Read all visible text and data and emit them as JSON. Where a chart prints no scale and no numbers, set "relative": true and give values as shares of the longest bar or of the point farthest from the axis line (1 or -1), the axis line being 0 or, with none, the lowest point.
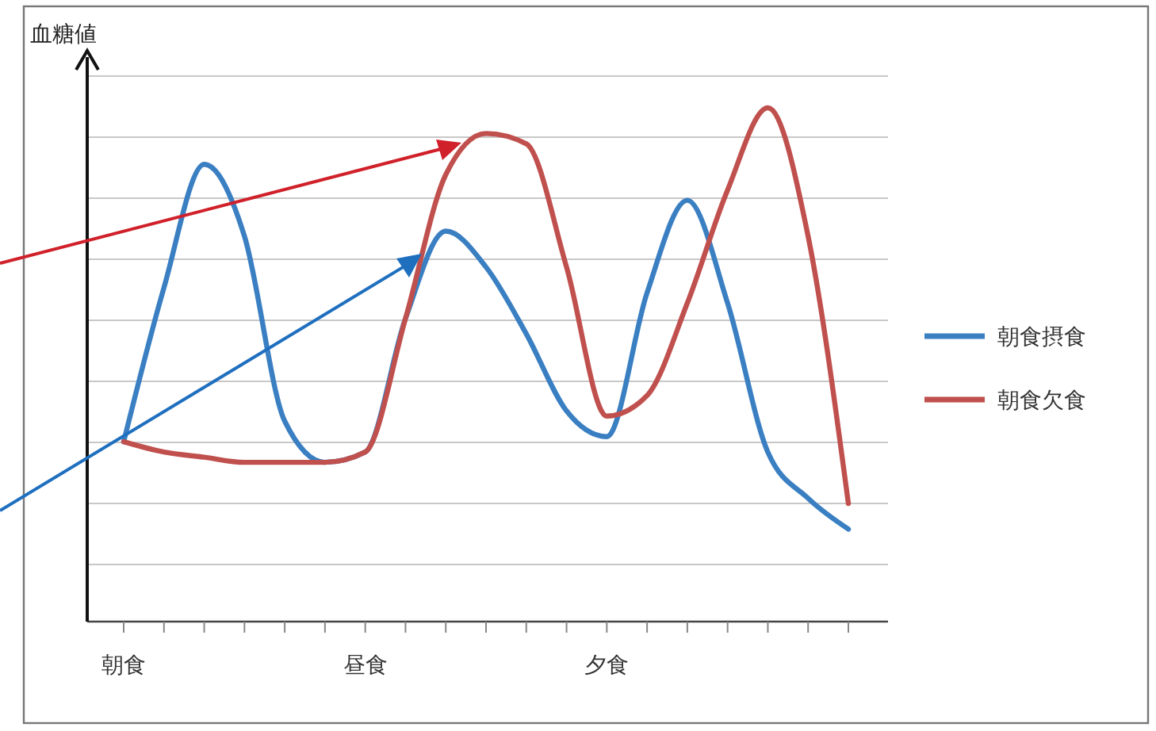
{
  "chart_data": {
    "type": "line",
    "relative": true,
    "ylabel": "血糖値",
    "categories": [
      "朝食",
      null,
      null,
      null,
      null,
      null,
      "昼食",
      null,
      null,
      null,
      null,
      null,
      "夕食",
      null,
      null,
      null,
      null,
      null,
      null
    ],
    "grid": "y",
    "legend": "right",
    "marker": "none",
    "line_style": "solid",
    "series": [
      {
        "name": "朝食摂食",
        "color": "#3a7fc2",
        "values": [
          0.35,
          0.65,
          0.89,
          0.75,
          0.39,
          0.31,
          0.33,
          0.59,
          0.76,
          0.69,
          0.56,
          0.41,
          0.36,
          0.64,
          0.82,
          0.62,
          0.33,
          0.24,
          0.18
        ]
      },
      {
        "name": "朝食欠食",
        "color": "#c0504d",
        "values": [
          0.35,
          0.33,
          0.32,
          0.31,
          0.31,
          0.31,
          0.33,
          0.59,
          0.87,
          0.95,
          0.93,
          0.69,
          0.4,
          0.44,
          0.62,
          0.84,
          1,
          0.75,
          0.23
        ]
      }
    ]
  }
}
